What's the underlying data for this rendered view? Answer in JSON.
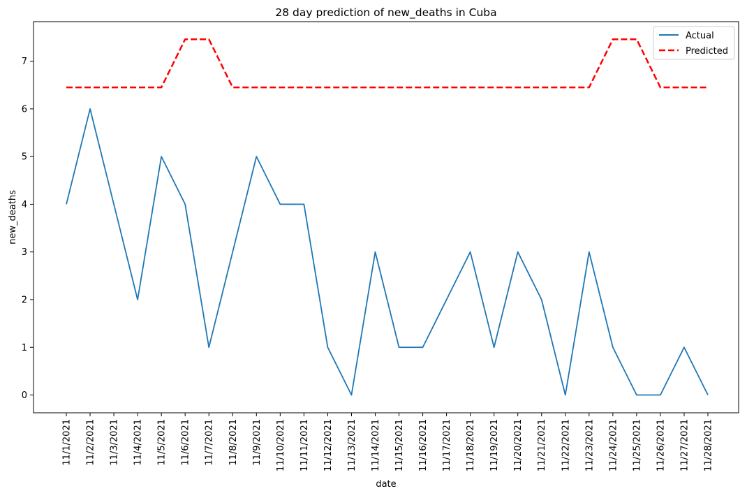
{
  "chart_data": {
    "type": "line",
    "title": "28 day prediction of new_deaths in Cuba",
    "xlabel": "date",
    "ylabel": "new_deaths",
    "x": [
      "11/1/2021",
      "11/2/2021",
      "11/3/2021",
      "11/4/2021",
      "11/5/2021",
      "11/6/2021",
      "11/7/2021",
      "11/8/2021",
      "11/9/2021",
      "11/10/2021",
      "11/11/2021",
      "11/12/2021",
      "11/13/2021",
      "11/14/2021",
      "11/15/2021",
      "11/16/2021",
      "11/17/2021",
      "11/18/2021",
      "11/19/2021",
      "11/20/2021",
      "11/21/2021",
      "11/22/2021",
      "11/23/2021",
      "11/24/2021",
      "11/25/2021",
      "11/26/2021",
      "11/27/2021",
      "11/28/2021"
    ],
    "series": [
      {
        "name": "Actual",
        "color": "#1f77b4",
        "style": "solid",
        "values": [
          4,
          6,
          4,
          2,
          5,
          4,
          1,
          3,
          5,
          4,
          4,
          1,
          0,
          3,
          1,
          1,
          2,
          3,
          1,
          3,
          2,
          0,
          3,
          1,
          0,
          0,
          1,
          0
        ]
      },
      {
        "name": "Predicted",
        "color": "#ff0000",
        "style": "dashed",
        "values": [
          6.45,
          6.45,
          6.45,
          6.45,
          6.45,
          7.46,
          7.46,
          6.45,
          6.45,
          6.45,
          6.45,
          6.45,
          6.45,
          6.45,
          6.45,
          6.45,
          6.45,
          6.45,
          6.45,
          6.45,
          6.45,
          6.45,
          6.45,
          7.46,
          7.46,
          6.45,
          6.45,
          6.45
        ]
      }
    ],
    "yticks": [
      0,
      1,
      2,
      3,
      4,
      5,
      6,
      7
    ],
    "ylim": [
      -0.373,
      7.829
    ],
    "grid": false,
    "legend_position": "top-right"
  }
}
